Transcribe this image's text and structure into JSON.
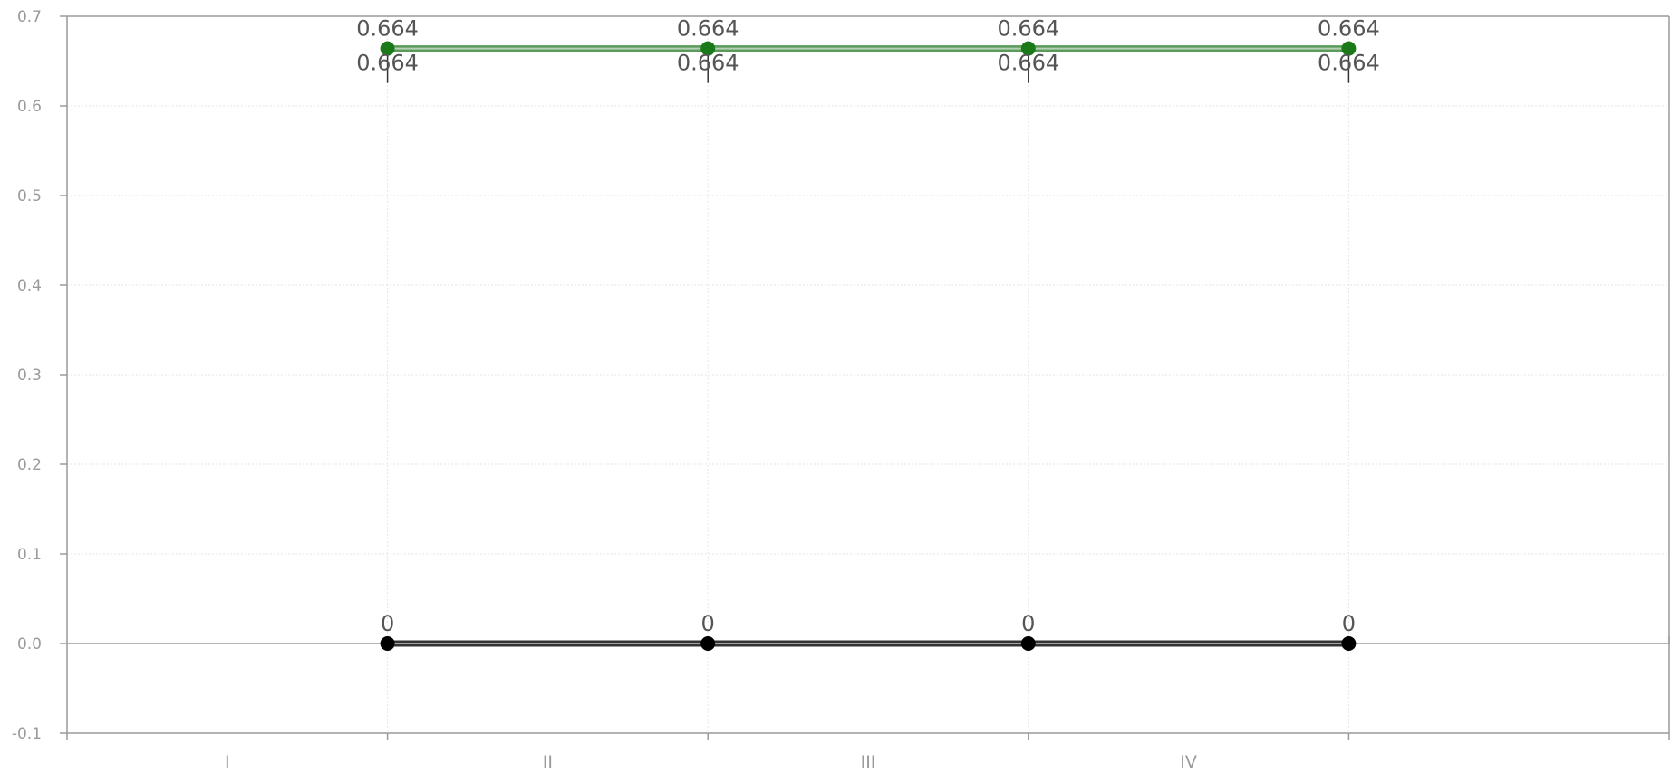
{
  "chart_data": {
    "type": "line",
    "categories": [
      "I",
      "II",
      "III",
      "IV"
    ],
    "x_ticks_at_points": [
      1,
      2,
      3,
      4
    ],
    "ylim": [
      -0.1,
      0.7
    ],
    "yticks": [
      "-0.1",
      "0.0",
      "0.1",
      "0.2",
      "0.3",
      "0.4",
      "0.5",
      "0.6",
      "0.7"
    ],
    "grid": true,
    "series": [
      {
        "values": [
          0.664,
          0.664,
          0.664,
          0.664
        ],
        "labels_above": [
          "0.664",
          "0.664",
          "0.664",
          "0.664"
        ],
        "labels_below": [
          "0.664",
          "0.664",
          "0.664",
          "0.664"
        ],
        "color": "#1a7a1a",
        "line_color": "#5a9a5a"
      },
      {
        "values": [
          0,
          0,
          0,
          0
        ],
        "labels_above": [
          "0",
          "0",
          "0",
          "0"
        ],
        "labels_below": [],
        "color": "#000000",
        "line_color": "#333333"
      }
    ],
    "title": "",
    "xlabel": "",
    "ylabel": ""
  }
}
